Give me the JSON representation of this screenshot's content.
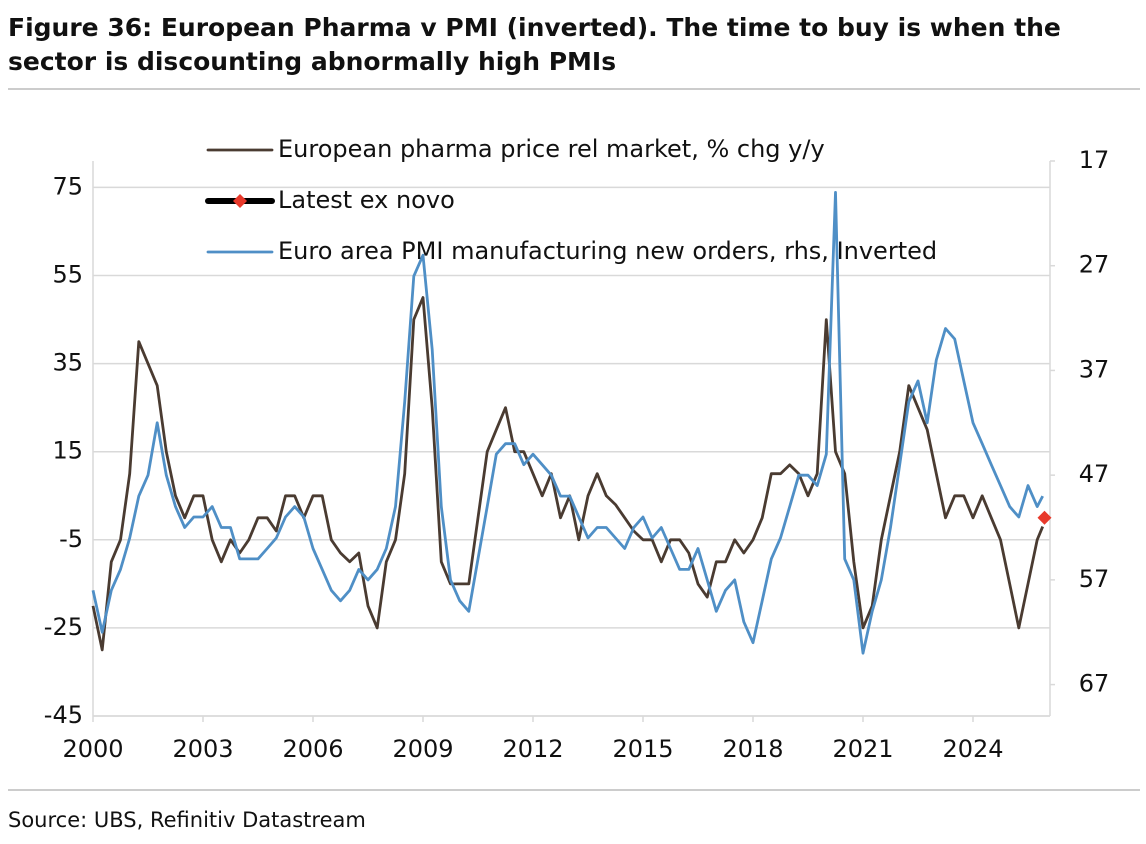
{
  "chart_data": {
    "type": "line",
    "title": "Figure 36: European Pharma v PMI (inverted). The time to buy is when the sector is discounting abnormally high PMIs",
    "source": "Source: UBS, Refinitiv Datastream",
    "x": [
      2000,
      2000.25,
      2000.5,
      2000.75,
      2001,
      2001.25,
      2001.5,
      2001.75,
      2002,
      2002.25,
      2002.5,
      2002.75,
      2003,
      2003.25,
      2003.5,
      2003.75,
      2004,
      2004.25,
      2004.5,
      2004.75,
      2005,
      2005.25,
      2005.5,
      2005.75,
      2006,
      2006.25,
      2006.5,
      2006.75,
      2007,
      2007.25,
      2007.5,
      2007.75,
      2008,
      2008.25,
      2008.5,
      2008.75,
      2009,
      2009.25,
      2009.5,
      2009.75,
      2010,
      2010.25,
      2010.5,
      2010.75,
      2011,
      2011.25,
      2011.5,
      2011.75,
      2012,
      2012.25,
      2012.5,
      2012.75,
      2013,
      2013.25,
      2013.5,
      2013.75,
      2014,
      2014.25,
      2014.5,
      2014.75,
      2015,
      2015.25,
      2015.5,
      2015.75,
      2016,
      2016.25,
      2016.5,
      2016.75,
      2017,
      2017.25,
      2017.5,
      2017.75,
      2018,
      2018.25,
      2018.5,
      2018.75,
      2019,
      2019.25,
      2019.5,
      2019.75,
      2020,
      2020.25,
      2020.5,
      2020.75,
      2021,
      2021.25,
      2021.5,
      2021.75,
      2022,
      2022.25,
      2022.5,
      2022.75,
      2023,
      2023.25,
      2023.5,
      2023.75,
      2024,
      2024.25,
      2024.5,
      2024.75,
      2025,
      2025.25,
      2025.5,
      2025.75,
      2025.9
    ],
    "series": [
      {
        "name": "European pharma price rel market, % chg y/y",
        "color": "#4a3b31",
        "values": [
          -20,
          -30,
          -10,
          -5,
          10,
          40,
          35,
          30,
          15,
          5,
          0,
          5,
          5,
          -5,
          -10,
          -5,
          -8,
          -5,
          0,
          0,
          -3,
          5,
          5,
          0,
          5,
          5,
          -5,
          -8,
          -10,
          -8,
          -20,
          -25,
          -10,
          -5,
          10,
          45,
          50,
          25,
          -10,
          -15,
          -15,
          -15,
          0,
          15,
          20,
          25,
          15,
          15,
          10,
          5,
          10,
          0,
          5,
          -5,
          5,
          10,
          5,
          3,
          0,
          -3,
          -5,
          -5,
          -10,
          -5,
          -5,
          -8,
          -15,
          -18,
          -10,
          -10,
          -5,
          -8,
          -5,
          0,
          10,
          10,
          12,
          10,
          5,
          10,
          45,
          15,
          10,
          -10,
          -25,
          -20,
          -5,
          5,
          15,
          30,
          25,
          20,
          10,
          0,
          5,
          5,
          0,
          5,
          0,
          -5,
          -15,
          -25,
          -15,
          -5,
          -2
        ]
      },
      {
        "name": "Euro area PMI manufacturing new orders, rhs, Inverted",
        "color": "#4f8fc6",
        "axis": "y2",
        "values": [
          58,
          62,
          58,
          56,
          53,
          49,
          47,
          42,
          47,
          50,
          52,
          51,
          51,
          50,
          52,
          52,
          55,
          55,
          55,
          54,
          53,
          51,
          50,
          51,
          54,
          56,
          58,
          59,
          58,
          56,
          57,
          56,
          54,
          50,
          40,
          28,
          26,
          35,
          50,
          57,
          59,
          60,
          55,
          50,
          45,
          44,
          44,
          46,
          45,
          46,
          47,
          49,
          49,
          51,
          53,
          52,
          52,
          53,
          54,
          52,
          51,
          53,
          52,
          54,
          56,
          56,
          54,
          57,
          60,
          58,
          57,
          61,
          63,
          59,
          55,
          53,
          50,
          47,
          47,
          48,
          45,
          20,
          55,
          57,
          64,
          60,
          57,
          52,
          46,
          40,
          38,
          42,
          36,
          33,
          34,
          38,
          42,
          44,
          46,
          48,
          50,
          51,
          48,
          50,
          49
        ]
      }
    ],
    "markers": [
      {
        "name": "Latest ex novo",
        "x": 2025.95,
        "value": 0,
        "color": "#e8392b"
      }
    ],
    "xlim": [
      2000,
      2026.1
    ],
    "xticks": [
      2000,
      2003,
      2006,
      2009,
      2012,
      2015,
      2018,
      2021,
      2024
    ],
    "ylim": [
      -45,
      81
    ],
    "yticks": [
      75,
      55,
      35,
      15,
      -5,
      -25,
      -45
    ],
    "y2lim": [
      17,
      70
    ],
    "y2_inverted": true,
    "y2ticks": [
      17,
      27,
      37,
      47,
      57,
      67
    ],
    "grid": true
  }
}
